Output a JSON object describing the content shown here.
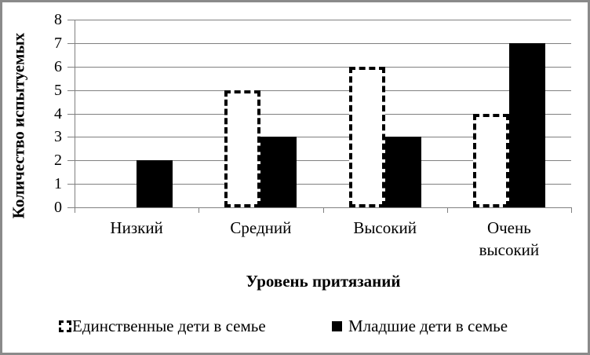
{
  "frame": {
    "border_color": "#8a8a8a",
    "background_color": "#ffffff"
  },
  "chart_data": {
    "type": "bar",
    "title": "",
    "categories": [
      "Низкий",
      "Средний",
      "Высокий",
      "Очень высокий"
    ],
    "series": [
      {
        "name": "Единственные дети в семье",
        "style": "dashed-outline-white",
        "values": [
          0,
          5,
          6,
          4
        ]
      },
      {
        "name": "Младшие дети в семье",
        "style": "solid-black",
        "values": [
          2,
          3,
          3,
          7
        ]
      }
    ],
    "xlabel": "Уровень притязаний",
    "ylabel": "Количество испытуемых",
    "ylim": [
      0,
      8
    ],
    "yticks": [
      0,
      1,
      2,
      3,
      4,
      5,
      6,
      7,
      8
    ],
    "grid": "horizontal",
    "legend_position": "bottom",
    "colors": {
      "grid": "#808080",
      "axis": "#808080",
      "bar_fill": "#000000",
      "bar_outline": "#000000",
      "text": "#000000"
    }
  }
}
